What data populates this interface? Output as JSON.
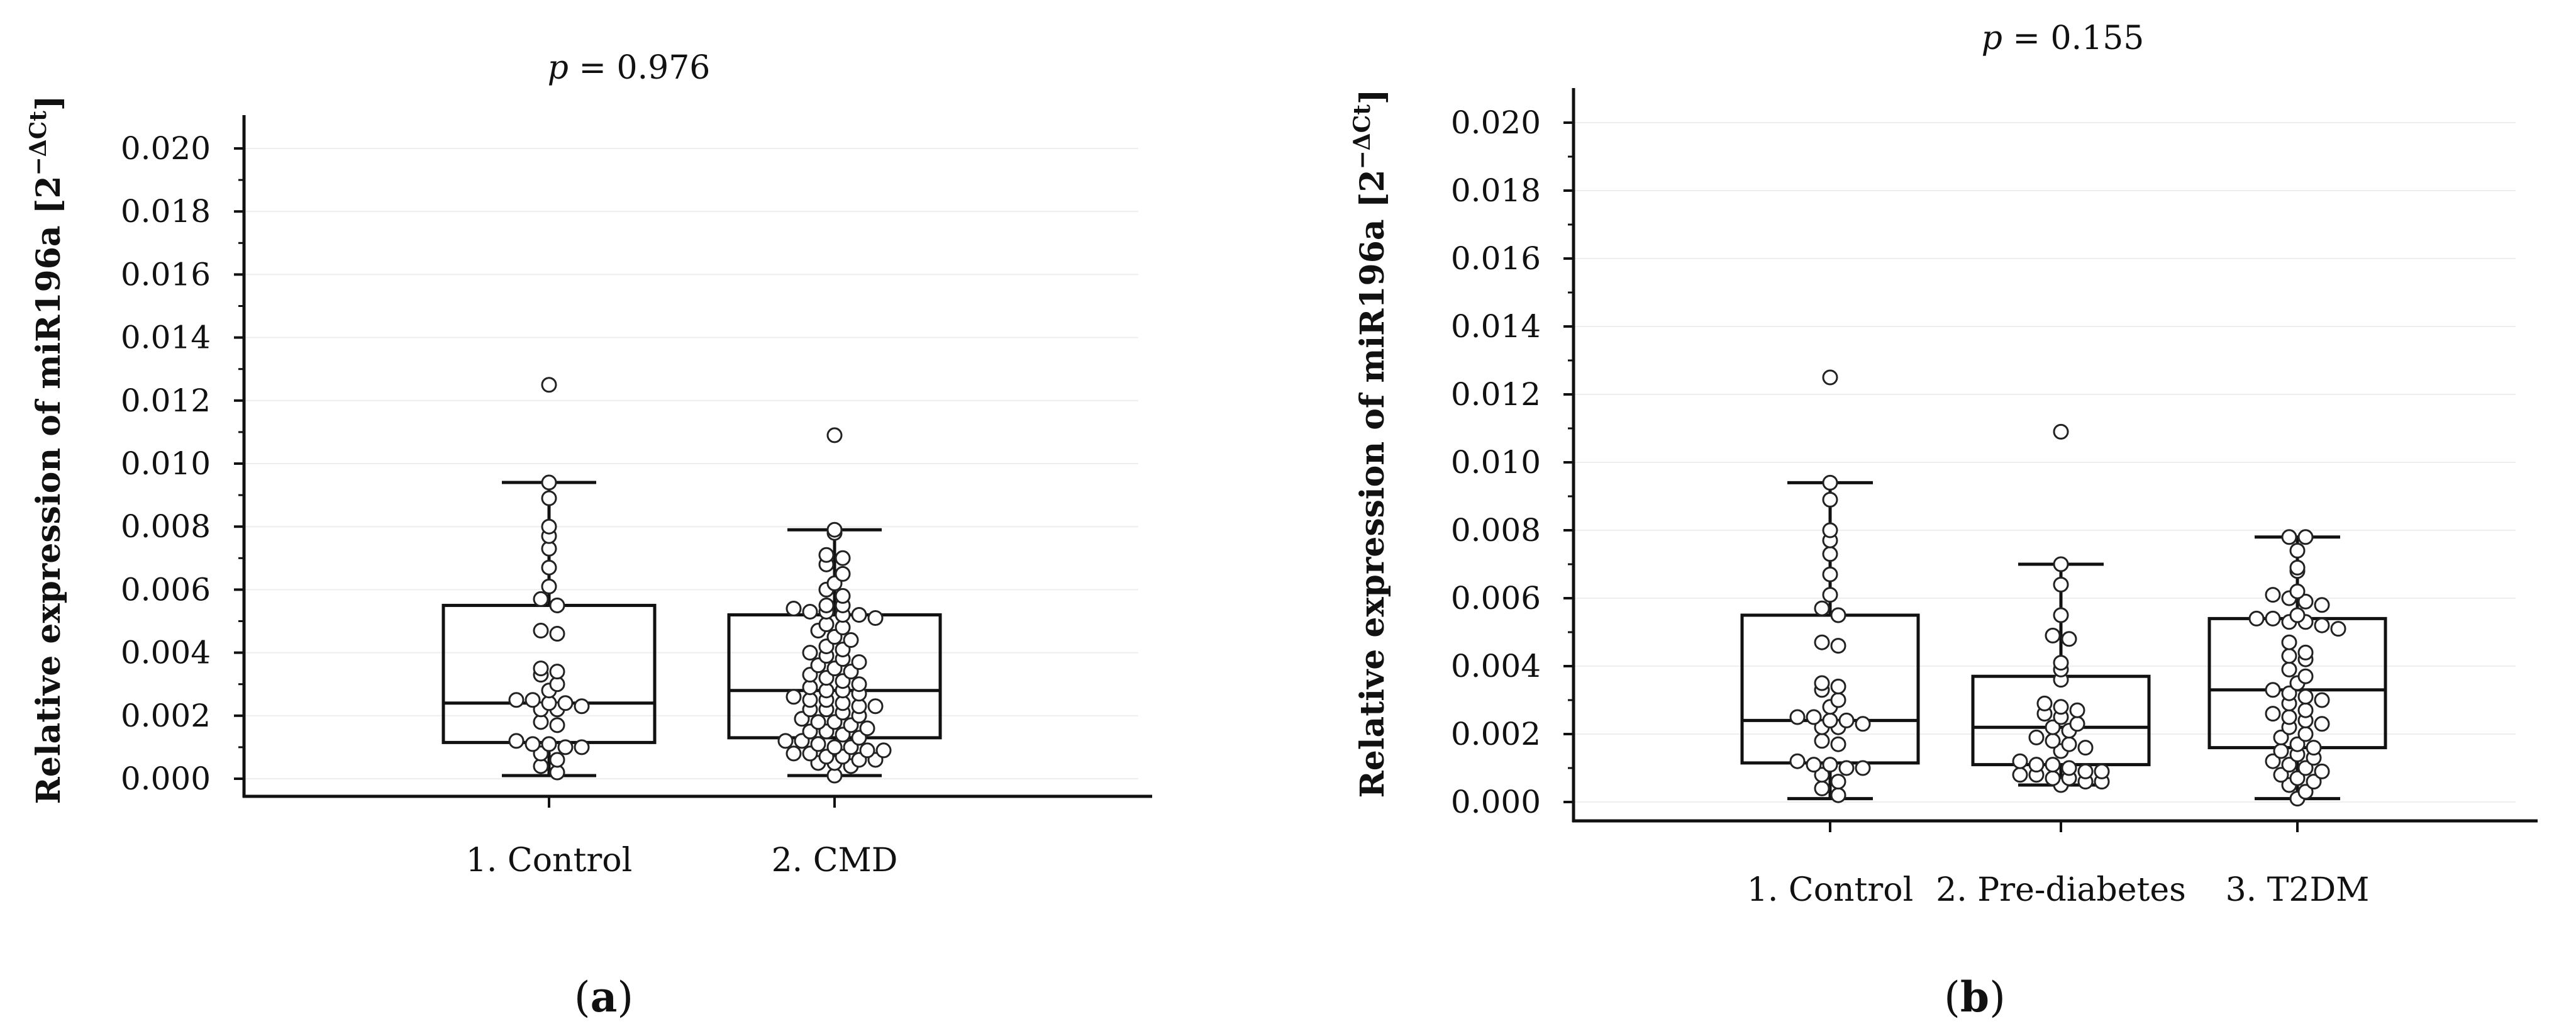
{
  "chart_data": [
    {
      "type": "box",
      "panel": "a",
      "title_p": "p",
      "title_value": " = 0.976",
      "ylabel": "Relative expression of miR196a [2",
      "ylabel_sup": "−ΔCt",
      "ylabel_close": "]",
      "ylim": [
        0,
        0.02
      ],
      "yticks": [
        "0.000",
        "0.002",
        "0.004",
        "0.006",
        "0.008",
        "0.010",
        "0.012",
        "0.014",
        "0.016",
        "0.018",
        "0.020"
      ],
      "categories": [
        "1. Control",
        "2. CMD"
      ],
      "boxes": [
        {
          "whisker_low": 0.0001,
          "q1": 0.00115,
          "median": 0.0024,
          "q3": 0.0055,
          "whisker_high": 0.0094,
          "points": [
            0.0125,
            0.0094,
            0.0089,
            0.008,
            0.0077,
            0.0073,
            0.0067,
            0.0061,
            0.0057,
            0.0055,
            0.0047,
            0.0046,
            0.0035,
            0.0034,
            0.0033,
            0.003,
            0.0028,
            0.0025,
            0.0025,
            0.0024,
            0.0024,
            0.0023,
            0.0022,
            0.0022,
            0.0018,
            0.0017,
            0.0012,
            0.0011,
            0.0011,
            0.001,
            0.001,
            0.0008,
            0.0006,
            0.0004,
            0.0002
          ]
        },
        {
          "whisker_low": 0.0001,
          "q1": 0.0013,
          "median": 0.0028,
          "q3": 0.0052,
          "whisker_high": 0.0079,
          "points": [
            0.0109,
            0.0079,
            0.0078,
            0.0071,
            0.007,
            0.0068,
            0.0065,
            0.0062,
            0.006,
            0.0058,
            0.0055,
            0.0055,
            0.0054,
            0.0053,
            0.0053,
            0.0052,
            0.0052,
            0.0051,
            0.0049,
            0.0048,
            0.0047,
            0.0045,
            0.0044,
            0.0042,
            0.0041,
            0.004,
            0.0039,
            0.0038,
            0.0037,
            0.0036,
            0.0035,
            0.0034,
            0.0033,
            0.0032,
            0.0031,
            0.003,
            0.0029,
            0.0028,
            0.0028,
            0.0027,
            0.0026,
            0.0025,
            0.0025,
            0.0024,
            0.0023,
            0.0023,
            0.0022,
            0.0022,
            0.0021,
            0.002,
            0.0019,
            0.0018,
            0.0018,
            0.0017,
            0.0016,
            0.0015,
            0.0015,
            0.0014,
            0.0013,
            0.0012,
            0.0012,
            0.0011,
            0.001,
            0.001,
            0.0009,
            0.0009,
            0.0008,
            0.0008,
            0.0007,
            0.0007,
            0.0006,
            0.0006,
            0.0005,
            0.0005,
            0.0004,
            0.0001
          ]
        }
      ]
    },
    {
      "type": "box",
      "panel": "b",
      "title_p": "p",
      "title_value": " = 0.155",
      "ylabel": "Relative expression of miR196a [2",
      "ylabel_sup": "−ΔCt",
      "ylabel_close": "]",
      "ylim": [
        0,
        0.02
      ],
      "yticks": [
        "0.000",
        "0.002",
        "0.004",
        "0.006",
        "0.008",
        "0.010",
        "0.012",
        "0.014",
        "0.016",
        "0.018",
        "0.020"
      ],
      "categories": [
        "1. Control",
        "2. Pre-diabetes",
        "3. T2DM"
      ],
      "boxes": [
        {
          "whisker_low": 0.0001,
          "q1": 0.00115,
          "median": 0.0024,
          "q3": 0.0055,
          "whisker_high": 0.0094,
          "points": [
            0.0125,
            0.0094,
            0.0089,
            0.008,
            0.0077,
            0.0073,
            0.0067,
            0.0061,
            0.0057,
            0.0055,
            0.0047,
            0.0046,
            0.0035,
            0.0034,
            0.0033,
            0.003,
            0.0028,
            0.0025,
            0.0025,
            0.0024,
            0.0024,
            0.0023,
            0.0022,
            0.0022,
            0.0018,
            0.0017,
            0.0012,
            0.0011,
            0.0011,
            0.001,
            0.001,
            0.0008,
            0.0006,
            0.0004,
            0.0002
          ]
        },
        {
          "whisker_low": 0.0005,
          "q1": 0.0011,
          "median": 0.0022,
          "q3": 0.0037,
          "whisker_high": 0.007,
          "points": [
            0.0109,
            0.007,
            0.0064,
            0.0055,
            0.0049,
            0.0048,
            0.0041,
            0.0039,
            0.0036,
            0.0029,
            0.0028,
            0.0027,
            0.0026,
            0.0025,
            0.0023,
            0.0022,
            0.0021,
            0.0019,
            0.0018,
            0.0017,
            0.0016,
            0.0015,
            0.0012,
            0.0011,
            0.0011,
            0.001,
            0.0009,
            0.0009,
            0.0008,
            0.0008,
            0.0007,
            0.0007,
            0.0006,
            0.0006,
            0.0005
          ]
        },
        {
          "whisker_low": 0.0001,
          "q1": 0.0016,
          "median": 0.0033,
          "q3": 0.0054,
          "whisker_high": 0.0078,
          "points": [
            0.0078,
            0.0078,
            0.0074,
            0.0069,
            0.0068,
            0.0062,
            0.0061,
            0.006,
            0.0059,
            0.0058,
            0.0055,
            0.0054,
            0.0054,
            0.0053,
            0.0053,
            0.0052,
            0.0051,
            0.0047,
            0.0044,
            0.0043,
            0.0042,
            0.0039,
            0.0037,
            0.0035,
            0.0033,
            0.0032,
            0.0031,
            0.003,
            0.0029,
            0.0027,
            0.0026,
            0.0025,
            0.0024,
            0.0023,
            0.0022,
            0.002,
            0.0019,
            0.0017,
            0.0016,
            0.0015,
            0.0014,
            0.0013,
            0.0012,
            0.0011,
            0.001,
            0.0009,
            0.0008,
            0.0007,
            0.0006,
            0.0005,
            0.0003,
            0.0001
          ]
        }
      ]
    }
  ],
  "labels": {
    "a": "a",
    "b": "b"
  }
}
